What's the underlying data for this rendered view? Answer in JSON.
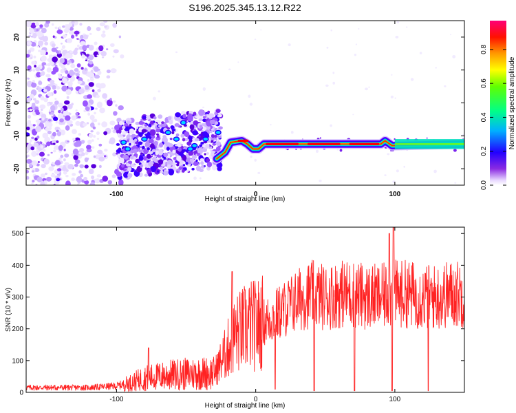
{
  "title": "S196.2025.345.13.12.R22",
  "chart_data": [
    {
      "type": "heatmap",
      "xlabel": "Height of straight line (km)",
      "ylabel": "Frequency (Hz)",
      "xlim": [
        -165,
        150
      ],
      "ylim": [
        -25,
        25
      ],
      "xticks": [
        -100,
        0,
        100
      ],
      "yticks": [
        20,
        10,
        0,
        -10,
        -20
      ],
      "colorbar": {
        "label": "Normalized spectral amplitude",
        "range": [
          0,
          0.97
        ],
        "ticks": [
          0.0,
          0.2,
          0.4,
          0.6,
          0.8
        ],
        "tick_labels": [
          "0.0",
          "0.2",
          "0.4",
          "0.6",
          "0.8"
        ]
      },
      "ridge": [
        {
          "x": -28,
          "y": -17
        },
        {
          "x": -22,
          "y": -15
        },
        {
          "x": -18,
          "y": -12
        },
        {
          "x": -10,
          "y": -11.5
        },
        {
          "x": -6,
          "y": -12.5
        },
        {
          "x": -2,
          "y": -14
        },
        {
          "x": 2,
          "y": -14
        },
        {
          "x": 6,
          "y": -12.5
        },
        {
          "x": 20,
          "y": -12.5
        },
        {
          "x": 90,
          "y": -12.5
        },
        {
          "x": 93,
          "y": -11.5
        },
        {
          "x": 98,
          "y": -13
        },
        {
          "x": 150,
          "y": -12.5
        }
      ]
    },
    {
      "type": "line",
      "xlabel": "Height of straight line (km)",
      "ylabel": "SNR (10 * v/v)",
      "xlim": [
        -165,
        150
      ],
      "ylim": [
        0,
        520
      ],
      "xticks": [
        -100,
        0,
        100
      ],
      "yticks": [
        0,
        100,
        200,
        300,
        400,
        500
      ],
      "color": "#ff2222",
      "envelope": [
        {
          "x": -165,
          "y": 15
        },
        {
          "x": -120,
          "y": 15
        },
        {
          "x": -100,
          "y": 20
        },
        {
          "x": -90,
          "y": 30
        },
        {
          "x": -80,
          "y": 45
        },
        {
          "x": -60,
          "y": 55
        },
        {
          "x": -40,
          "y": 60
        },
        {
          "x": -30,
          "y": 60
        },
        {
          "x": -22,
          "y": 120
        },
        {
          "x": -15,
          "y": 180
        },
        {
          "x": -5,
          "y": 210
        },
        {
          "x": 0,
          "y": 210
        },
        {
          "x": 10,
          "y": 230
        },
        {
          "x": 20,
          "y": 260
        },
        {
          "x": 30,
          "y": 290
        },
        {
          "x": 40,
          "y": 310
        },
        {
          "x": 50,
          "y": 300
        },
        {
          "x": 60,
          "y": 310
        },
        {
          "x": 70,
          "y": 310
        },
        {
          "x": 80,
          "y": 300
        },
        {
          "x": 90,
          "y": 300
        },
        {
          "x": 100,
          "y": 310
        },
        {
          "x": 110,
          "y": 310
        },
        {
          "x": 120,
          "y": 300
        },
        {
          "x": 130,
          "y": 300
        },
        {
          "x": 140,
          "y": 310
        },
        {
          "x": 150,
          "y": 310
        }
      ],
      "peaks": [
        {
          "x": -77,
          "y": 140
        },
        {
          "x": -17,
          "y": 380
        },
        {
          "x": 96,
          "y": 500
        },
        {
          "x": 99,
          "y": 520
        }
      ],
      "dropouts": [
        {
          "x": 14,
          "y": 10
        },
        {
          "x": 42,
          "y": 5
        },
        {
          "x": 71,
          "y": 5
        },
        {
          "x": 98,
          "y": 5
        },
        {
          "x": 124,
          "y": 5
        }
      ]
    }
  ]
}
